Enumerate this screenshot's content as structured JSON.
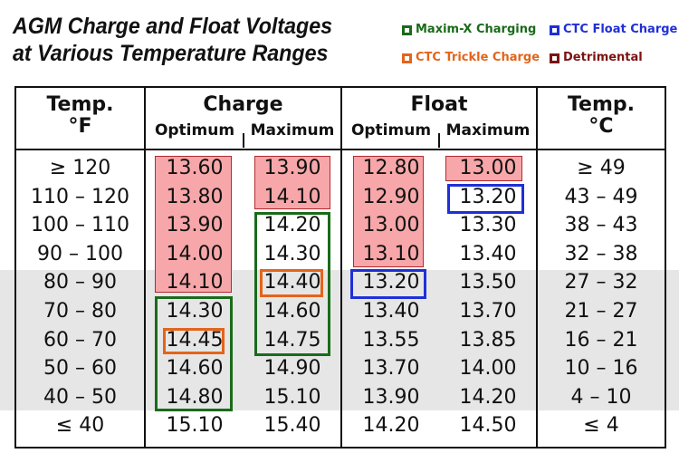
{
  "title": {
    "line1": "AGM Charge and Float Voltages",
    "line2": "at Various Temperature Ranges"
  },
  "legend": [
    {
      "label": "Maxim-X Charging",
      "color": "#1a6b1a"
    },
    {
      "label": "CTC Float Charge",
      "color": "#1f2fd8"
    },
    {
      "label": "CTC Trickle Charge",
      "color": "#e3641b"
    },
    {
      "label": "Detrimental",
      "color": "#7a1414"
    }
  ],
  "headers": {
    "temp_f": "Temp.",
    "temp_f_unit": "°F",
    "charge": "Charge",
    "float": "Float",
    "temp_c": "Temp.",
    "temp_c_unit": "°C",
    "optimum": "Optimum",
    "maximum": "Maximum"
  },
  "rows": [
    {
      "f": "≥ 120",
      "co": "13.60",
      "cm": "13.90",
      "fo": "12.80",
      "fm": "13.00",
      "c": "≥ 49"
    },
    {
      "f": "110 – 120",
      "co": "13.80",
      "cm": "14.10",
      "fo": "12.90",
      "fm": "13.20",
      "c": "43 – 49"
    },
    {
      "f": "100 – 110",
      "co": "13.90",
      "cm": "14.20",
      "fo": "13.00",
      "fm": "13.30",
      "c": "38 – 43"
    },
    {
      "f": "90 – 100",
      "co": "14.00",
      "cm": "14.30",
      "fo": "13.10",
      "fm": "13.40",
      "c": "32 – 38"
    },
    {
      "f": "80 – 90",
      "co": "14.10",
      "cm": "14.40",
      "fo": "13.20",
      "fm": "13.50",
      "c": "27 – 32"
    },
    {
      "f": "70 – 80",
      "co": "14.30",
      "cm": "14.60",
      "fo": "13.40",
      "fm": "13.70",
      "c": "21 – 27"
    },
    {
      "f": "60 – 70",
      "co": "14.45",
      "cm": "14.75",
      "fo": "13.55",
      "fm": "13.85",
      "c": "16 – 21"
    },
    {
      "f": "50 – 60",
      "co": "14.60",
      "cm": "14.90",
      "fo": "13.70",
      "fm": "14.00",
      "c": "10 – 16"
    },
    {
      "f": "40 – 50",
      "co": "14.80",
      "cm": "15.10",
      "fo": "13.90",
      "fm": "14.20",
      "c": "4 – 10"
    },
    {
      "f": "≤ 40",
      "co": "15.10",
      "cm": "15.40",
      "fo": "14.20",
      "fm": "14.50",
      "c": "≤ 4"
    }
  ],
  "colors": {
    "detrimental_fill": "#f7a7a9",
    "detrimental_border": "#b32a2f",
    "maxim_x": "#1a6b1a",
    "ctc_float": "#1f2fd8",
    "ctc_trickle": "#e3641b",
    "band": "#e6e6e6"
  }
}
